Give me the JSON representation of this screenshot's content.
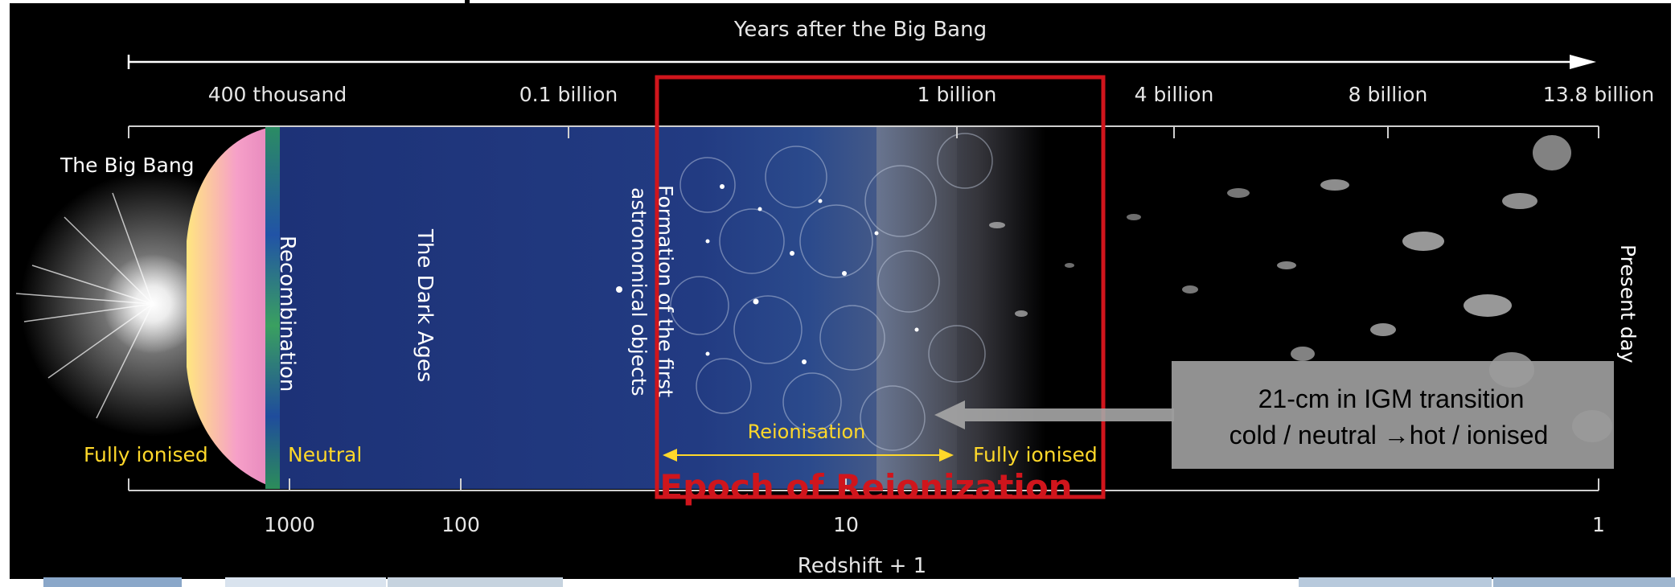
{
  "top_axis": {
    "title": "Years after the Big Bang",
    "ticks": [
      "400 thousand",
      "0.1 billion",
      "1 billion",
      "4 billion",
      "8 billion",
      "13.8 billion"
    ]
  },
  "bottom_axis": {
    "title": "Redshift + 1",
    "ticks": [
      "1000",
      "100",
      "10",
      "1"
    ]
  },
  "eras": {
    "big_bang": "The Big Bang",
    "recombination": "Recombination",
    "dark_ages": "The Dark Ages",
    "first_objects": "Formation of the first astronomical objects",
    "present_day": "Present day"
  },
  "states": {
    "fully_ionised_early": "Fully ionised",
    "neutral": "Neutral",
    "reionisation": "Reionisation",
    "fully_ionised_late": "Fully ionised"
  },
  "highlight": {
    "label": "Epoch of Reionization",
    "color": "#d0151c"
  },
  "callout": {
    "line1": "21-cm in IGM transition",
    "line2": "cold / neutral →hot / ionised"
  },
  "colors": {
    "dark_ages_blue": "#1f3578",
    "state_label_yellow": "#ffd82a",
    "axis_text": "#e6e6e6"
  }
}
